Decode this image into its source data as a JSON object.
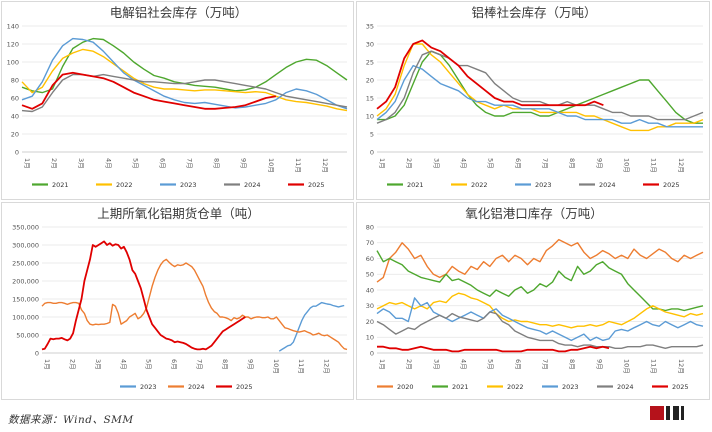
{
  "source_note": "数据来源：Wind、SMM",
  "colors": {
    "c2020": "#ed7d31",
    "c2021": "#4ea72e",
    "c2022": "#ffc000",
    "c2023": "#5b9bd5",
    "c2024": "#7f7f7f",
    "c2025": "#e00000"
  },
  "chart_data": [
    {
      "type": "line",
      "title": "电解铝社会库存（万吨）",
      "ylim": [
        0,
        140
      ],
      "yticks": [
        0,
        20,
        40,
        60,
        80,
        100,
        120,
        140
      ],
      "months": [
        "1月",
        "2月",
        "3月",
        "4月",
        "5月",
        "6月",
        "7月",
        "8月",
        "9月",
        "10月",
        "11月",
        "12月"
      ],
      "series": [
        {
          "name": "2021",
          "color": "#4ea72e",
          "values": [
            72,
            68,
            66,
            70,
            95,
            115,
            122,
            126,
            125,
            118,
            110,
            100,
            92,
            85,
            82,
            78,
            76,
            74,
            73,
            72,
            70,
            68,
            69,
            72,
            78,
            86,
            94,
            100,
            103,
            102,
            96,
            88,
            80
          ]
        },
        {
          "name": "2022",
          "color": "#ffc000",
          "values": [
            78,
            66,
            72,
            90,
            104,
            110,
            114,
            112,
            106,
            98,
            90,
            82,
            76,
            72,
            70,
            70,
            69,
            68,
            69,
            69,
            68,
            67,
            66,
            67,
            66,
            62,
            58,
            56,
            55,
            53,
            51,
            48,
            46
          ]
        },
        {
          "name": "2023",
          "color": "#5b9bd5",
          "values": [
            58,
            62,
            78,
            102,
            118,
            126,
            125,
            122,
            112,
            100,
            88,
            80,
            74,
            68,
            62,
            58,
            55,
            54,
            55,
            53,
            51,
            49,
            50,
            52,
            54,
            58,
            66,
            70,
            68,
            64,
            58,
            52,
            48
          ]
        },
        {
          "name": "2024",
          "color": "#7f7f7f",
          "values": [
            46,
            45,
            50,
            66,
            80,
            86,
            86,
            84,
            86,
            84,
            82,
            80,
            78,
            78,
            77,
            76,
            76,
            78,
            80,
            80,
            78,
            76,
            74,
            72,
            70,
            66,
            62,
            60,
            58,
            56,
            54,
            52,
            50
          ]
        },
        {
          "name": "2025",
          "color": "#e00000",
          "values": [
            52,
            48,
            54,
            74,
            86,
            88,
            86,
            84,
            82,
            78,
            72,
            66,
            62,
            58,
            56,
            54,
            52,
            50,
            48,
            48,
            49,
            50,
            52,
            56,
            60,
            62
          ]
        }
      ]
    },
    {
      "type": "line",
      "title": "铝棒社会库存（万吨）",
      "ylim": [
        0,
        35
      ],
      "yticks": [
        0,
        5,
        10,
        15,
        20,
        25,
        30,
        35
      ],
      "months": [
        "1月",
        "2月",
        "3月",
        "4月",
        "5月",
        "6月",
        "7月",
        "8月",
        "9月",
        "10月",
        "11月",
        "12月"
      ],
      "series": [
        {
          "name": "2021",
          "color": "#4ea72e",
          "values": [
            9,
            9,
            10,
            13,
            19,
            25,
            28,
            27,
            24,
            20,
            16,
            13,
            11,
            10,
            10,
            11,
            11,
            11,
            10,
            10,
            11,
            12,
            13,
            14,
            15,
            16,
            17,
            18,
            19,
            20,
            20,
            17,
            14,
            11,
            9,
            8,
            8
          ]
        },
        {
          "name": "2022",
          "color": "#ffc000",
          "values": [
            10,
            12,
            16,
            24,
            30,
            30,
            27,
            25,
            22,
            19,
            16,
            14,
            13,
            12,
            13,
            12,
            12,
            12,
            11,
            11,
            11,
            11,
            11,
            10,
            10,
            9,
            8,
            7,
            6,
            6,
            6,
            7,
            7,
            8,
            8,
            8,
            9
          ]
        },
        {
          "name": "2023",
          "color": "#5b9bd5",
          "values": [
            9,
            11,
            14,
            20,
            24,
            23,
            21,
            19,
            18,
            17,
            15,
            14,
            14,
            13,
            13,
            13,
            12,
            12,
            12,
            12,
            11,
            10,
            10,
            9,
            9,
            9,
            9,
            8,
            8,
            9,
            8,
            8,
            7,
            7,
            7,
            7,
            7
          ]
        },
        {
          "name": "2024",
          "color": "#7f7f7f",
          "values": [
            8,
            9,
            11,
            15,
            22,
            27,
            28,
            27,
            26,
            24,
            24,
            23,
            22,
            19,
            17,
            15,
            14,
            14,
            14,
            13,
            13,
            14,
            13,
            13,
            13,
            12,
            11,
            11,
            10,
            10,
            10,
            9,
            9,
            9,
            9,
            10,
            11
          ]
        },
        {
          "name": "2025",
          "color": "#e00000",
          "values": [
            12,
            14,
            18,
            26,
            30,
            31,
            29,
            28,
            26,
            24,
            21,
            19,
            17,
            15,
            14,
            14,
            13,
            13,
            13,
            13,
            13,
            13,
            13,
            13,
            14,
            13
          ]
        }
      ]
    },
    {
      "type": "line",
      "title": "上期所氧化铝期货仓单（吨）",
      "ylim": [
        0,
        350000
      ],
      "yticks": [
        0,
        50000,
        100000,
        150000,
        200000,
        250000,
        300000,
        350000
      ],
      "ytick_labels": [
        "0",
        "50,000",
        "100,000",
        "150,000",
        "200,000",
        "250,000",
        "300,000",
        "350,000"
      ],
      "months": [
        "1月",
        "2月",
        "3月",
        "4月",
        "5月",
        "6月",
        "7月",
        "8月",
        "9月",
        "10月",
        "11月",
        "12月"
      ],
      "series": [
        {
          "name": "2023",
          "color": "#5b9bd5",
          "values": [
            null,
            null,
            null,
            null,
            null,
            null,
            null,
            null,
            null,
            null,
            null,
            null,
            null,
            null,
            null,
            null,
            null,
            null,
            null,
            null,
            null,
            null,
            null,
            null,
            null,
            null,
            null,
            null,
            null,
            null,
            null,
            null,
            null,
            null,
            null,
            null,
            null,
            null,
            null,
            null,
            null,
            null,
            null,
            null,
            null,
            null,
            null,
            null,
            null,
            null,
            null,
            null,
            null,
            null,
            null,
            null,
            null,
            null,
            null,
            null,
            null,
            null,
            null,
            null,
            null,
            null,
            null,
            null,
            null,
            null,
            null,
            null,
            null,
            null,
            null,
            null,
            null,
            null,
            null,
            null,
            null,
            null,
            null,
            null,
            5000,
            10000,
            15000,
            20000,
            22000,
            30000,
            50000,
            70000,
            90000,
            105000,
            115000,
            125000,
            130000,
            130000,
            135000,
            140000,
            138000,
            136000,
            135000,
            132000,
            130000,
            128000,
            130000,
            132000
          ]
        },
        {
          "name": "2024",
          "color": "#ed7d31",
          "values": [
            130000,
            138000,
            140000,
            140000,
            138000,
            138000,
            140000,
            140000,
            138000,
            135000,
            138000,
            140000,
            140000,
            138000,
            120000,
            110000,
            90000,
            80000,
            78000,
            80000,
            79000,
            80000,
            80000,
            82000,
            85000,
            135000,
            130000,
            110000,
            80000,
            85000,
            90000,
            100000,
            105000,
            110000,
            95000,
            100000,
            110000,
            125000,
            155000,
            185000,
            210000,
            230000,
            245000,
            255000,
            260000,
            252000,
            245000,
            240000,
            245000,
            243000,
            245000,
            250000,
            245000,
            240000,
            230000,
            215000,
            200000,
            185000,
            160000,
            140000,
            125000,
            115000,
            110000,
            100000,
            100000,
            98000,
            95000,
            90000,
            98000,
            95000,
            98000,
            105000,
            100000,
            100000,
            95000,
            98000,
            100000,
            100000,
            98000,
            98000,
            100000,
            95000,
            95000,
            100000,
            90000,
            80000,
            70000,
            68000,
            65000,
            62000,
            60000,
            58000,
            60000,
            62000,
            58000,
            55000,
            50000,
            52000,
            55000,
            50000,
            48000,
            50000,
            45000,
            40000,
            35000,
            30000,
            20000,
            12000,
            10000
          ]
        },
        {
          "name": "2025",
          "color": "#e00000",
          "values": [
            10000,
            12000,
            25000,
            40000,
            38000,
            40000,
            40000,
            42000,
            38000,
            35000,
            40000,
            55000,
            90000,
            120000,
            150000,
            200000,
            230000,
            260000,
            300000,
            295000,
            300000,
            305000,
            310000,
            300000,
            305000,
            298000,
            302000,
            300000,
            290000,
            295000,
            280000,
            260000,
            230000,
            220000,
            200000,
            180000,
            150000,
            120000,
            100000,
            80000,
            70000,
            60000,
            50000,
            45000,
            40000,
            38000,
            35000,
            30000,
            32000,
            30000,
            28000,
            25000,
            20000,
            15000,
            12000,
            10000,
            10000,
            12000,
            10000,
            15000,
            20000,
            30000,
            40000,
            50000,
            60000,
            65000,
            70000,
            75000,
            80000,
            85000,
            90000,
            95000,
            100000
          ]
        }
      ]
    },
    {
      "type": "line",
      "title": "氧化铝港口库存（万吨）",
      "ylim": [
        0,
        80
      ],
      "yticks": [
        0,
        10,
        20,
        30,
        40,
        50,
        60,
        70,
        80
      ],
      "months": [
        "1月",
        "2月",
        "3月",
        "4月",
        "5月",
        "6月",
        "7月",
        "8月",
        "9月",
        "10月",
        "11月",
        "12月"
      ],
      "series": [
        {
          "name": "2020",
          "color": "#ed7d31",
          "values": [
            45,
            48,
            60,
            64,
            70,
            66,
            60,
            62,
            55,
            50,
            48,
            50,
            55,
            52,
            50,
            55,
            53,
            58,
            55,
            60,
            62,
            58,
            62,
            60,
            56,
            60,
            58,
            65,
            68,
            72,
            70,
            68,
            70,
            64,
            60,
            62,
            65,
            63,
            60,
            62,
            60,
            66,
            62,
            60,
            63,
            66,
            64,
            60,
            58,
            62,
            60,
            62,
            64
          ]
        },
        {
          "name": "2021",
          "color": "#4ea72e",
          "values": [
            65,
            58,
            60,
            58,
            56,
            52,
            50,
            48,
            47,
            46,
            45,
            50,
            46,
            47,
            45,
            43,
            40,
            38,
            36,
            40,
            38,
            36,
            40,
            42,
            38,
            40,
            44,
            42,
            45,
            52,
            48,
            46,
            55,
            50,
            52,
            56,
            58,
            54,
            52,
            50,
            44,
            40,
            36,
            32,
            28,
            28,
            27,
            28,
            28,
            27,
            28,
            29,
            30
          ]
        },
        {
          "name": "2022",
          "color": "#ffc000",
          "values": [
            28,
            30,
            32,
            31,
            32,
            30,
            28,
            30,
            28,
            32,
            33,
            32,
            36,
            38,
            37,
            35,
            34,
            32,
            30,
            25,
            22,
            20,
            21,
            20,
            20,
            19,
            18,
            18,
            17,
            18,
            17,
            16,
            17,
            17,
            18,
            17,
            18,
            20,
            19,
            18,
            20,
            22,
            25,
            28,
            30,
            28,
            26,
            25,
            24,
            23,
            25,
            24,
            25
          ]
        },
        {
          "name": "2023",
          "color": "#5b9bd5",
          "values": [
            25,
            28,
            26,
            22,
            22,
            20,
            35,
            30,
            32,
            26,
            24,
            22,
            20,
            22,
            24,
            26,
            24,
            22,
            26,
            28,
            24,
            22,
            20,
            18,
            16,
            15,
            14,
            12,
            14,
            12,
            10,
            8,
            10,
            12,
            8,
            10,
            8,
            9,
            14,
            15,
            14,
            16,
            18,
            20,
            18,
            17,
            20,
            18,
            16,
            18,
            20,
            18,
            17
          ]
        },
        {
          "name": "2024",
          "color": "#7f7f7f",
          "values": [
            20,
            18,
            15,
            12,
            14,
            16,
            15,
            18,
            20,
            22,
            24,
            22,
            25,
            23,
            22,
            21,
            20,
            22,
            26,
            25,
            20,
            18,
            14,
            12,
            10,
            9,
            8,
            8,
            8,
            6,
            5,
            5,
            4,
            5,
            5,
            4,
            4,
            4,
            3,
            3,
            4,
            4,
            4,
            5,
            5,
            4,
            3,
            4,
            4,
            4,
            4,
            4,
            5
          ]
        },
        {
          "name": "2025",
          "color": "#e00000",
          "values": [
            4,
            4,
            3,
            3,
            2,
            2,
            3,
            4,
            3,
            2,
            2,
            2,
            1,
            1,
            2,
            2,
            2,
            2,
            2,
            2,
            1,
            1,
            1,
            1,
            2,
            2,
            2,
            2,
            2,
            1,
            1,
            2,
            2,
            3,
            4,
            3,
            4,
            3
          ]
        }
      ]
    }
  ]
}
